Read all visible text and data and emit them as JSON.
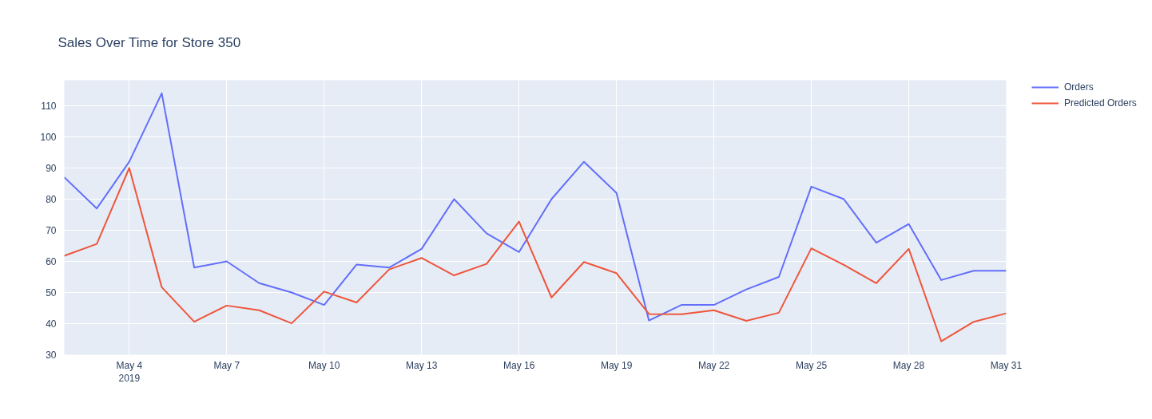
{
  "chart_data": {
    "type": "line",
    "title": "Sales Over Time for Store 350",
    "x": [
      "2019-05-02",
      "2019-05-03",
      "2019-05-04",
      "2019-05-05",
      "2019-05-06",
      "2019-05-07",
      "2019-05-08",
      "2019-05-09",
      "2019-05-10",
      "2019-05-11",
      "2019-05-12",
      "2019-05-13",
      "2019-05-14",
      "2019-05-15",
      "2019-05-16",
      "2019-05-17",
      "2019-05-18",
      "2019-05-19",
      "2019-05-20",
      "2019-05-21",
      "2019-05-22",
      "2019-05-23",
      "2019-05-24",
      "2019-05-25",
      "2019-05-26",
      "2019-05-27",
      "2019-05-28",
      "2019-05-29",
      "2019-05-30",
      "2019-05-31"
    ],
    "series": [
      {
        "name": "Orders",
        "color": "#636efa",
        "values": [
          87,
          77,
          92,
          114,
          58,
          60,
          53,
          50,
          46,
          59,
          58,
          64,
          80,
          69,
          63,
          80,
          92,
          82,
          41,
          46,
          46,
          51,
          55,
          84,
          80,
          66,
          72,
          54,
          57,
          57
        ]
      },
      {
        "name": "Predicted Orders",
        "color": "#ef553b",
        "values": [
          61.8,
          65.6,
          90,
          51.7,
          40.6,
          45.8,
          44.3,
          40.1,
          50.3,
          46.8,
          57.4,
          61.1,
          55.5,
          59.2,
          72.8,
          48.4,
          59.8,
          56.2,
          43.1,
          43.0,
          44.3,
          40.9,
          43.5,
          64.2,
          58.9,
          53.0,
          64.0,
          34.3,
          40.6,
          43.3
        ]
      }
    ],
    "xlim": [
      "2019-05-02",
      "2019-05-31"
    ],
    "xticks": [
      {
        "value": "2019-05-04",
        "label": "May 4\n2019"
      },
      {
        "value": "2019-05-07",
        "label": "May 7"
      },
      {
        "value": "2019-05-10",
        "label": "May 10"
      },
      {
        "value": "2019-05-13",
        "label": "May 13"
      },
      {
        "value": "2019-05-16",
        "label": "May 16"
      },
      {
        "value": "2019-05-19",
        "label": "May 19"
      },
      {
        "value": "2019-05-22",
        "label": "May 22"
      },
      {
        "value": "2019-05-25",
        "label": "May 25"
      },
      {
        "value": "2019-05-28",
        "label": "May 28"
      },
      {
        "value": "2019-05-31",
        "label": "May 31"
      }
    ],
    "ylim": [
      30,
      118.2
    ],
    "yticks": [
      30,
      40,
      50,
      60,
      70,
      80,
      90,
      100,
      110
    ],
    "grid": true,
    "legend": "top right",
    "line_style": "solid"
  }
}
